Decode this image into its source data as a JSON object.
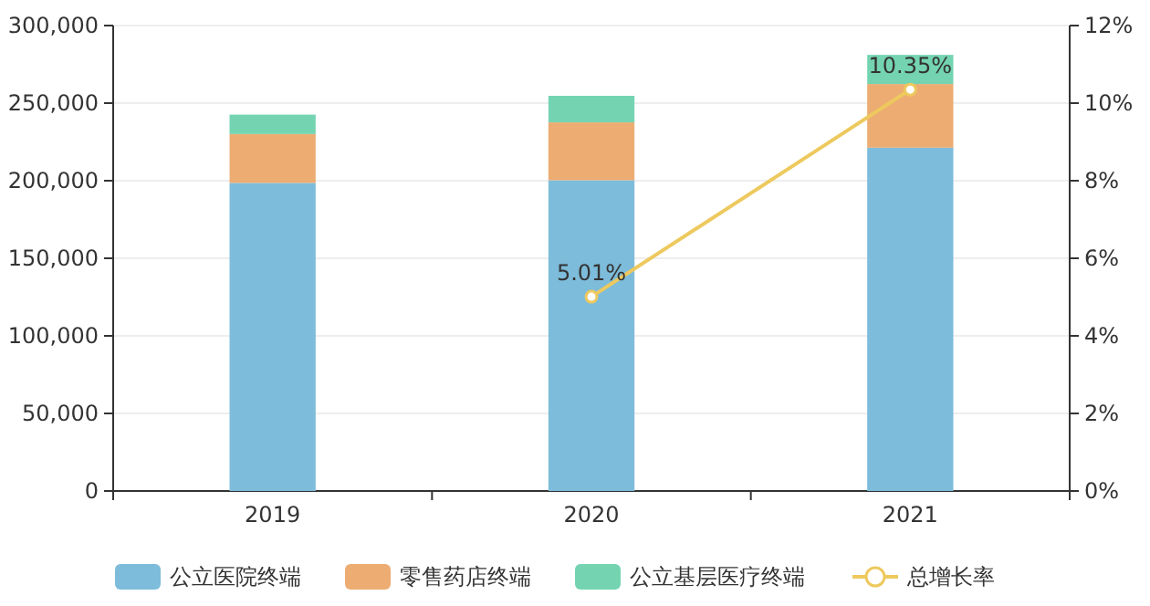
{
  "chart_data": {
    "type": "bar",
    "stacked": true,
    "categories": [
      "2019",
      "2020",
      "2021"
    ],
    "series": [
      {
        "name": "公立医院终端",
        "color": "#7dbcda",
        "values": [
          198600,
          200300,
          221300
        ]
      },
      {
        "name": "零售药店终端",
        "color": "#edac72",
        "values": [
          31500,
          37300,
          41000
        ]
      },
      {
        "name": "公立基层医疗终端",
        "color": "#74d4b2",
        "values": [
          12500,
          17100,
          18800
        ]
      },
      {
        "name": "总增长率",
        "type": "line",
        "axis": "y2",
        "color": "#edc95e",
        "values": [
          null,
          5.01,
          10.35
        ],
        "value_labels": [
          null,
          "5.01%",
          "10.35%"
        ],
        "marker": "circle"
      }
    ],
    "ylim": [
      0,
      300000
    ],
    "yticks": [
      {
        "value": 0,
        "label": "0"
      },
      {
        "value": 50000,
        "label": "50,000"
      },
      {
        "value": 100000,
        "label": "100,000"
      },
      {
        "value": 150000,
        "label": "150,000"
      },
      {
        "value": 200000,
        "label": "200,000"
      },
      {
        "value": 250000,
        "label": "250,000"
      },
      {
        "value": 300000,
        "label": "300,000"
      }
    ],
    "y2lim": [
      0,
      12
    ],
    "y2ticks": [
      {
        "value": 0,
        "label": "0%"
      },
      {
        "value": 2,
        "label": "2%"
      },
      {
        "value": 4,
        "label": "4%"
      },
      {
        "value": 6,
        "label": "6%"
      },
      {
        "value": 8,
        "label": "8%"
      },
      {
        "value": 10,
        "label": "10%"
      },
      {
        "value": 12,
        "label": "12%"
      }
    ],
    "grid": "y",
    "legend": "bottom"
  }
}
